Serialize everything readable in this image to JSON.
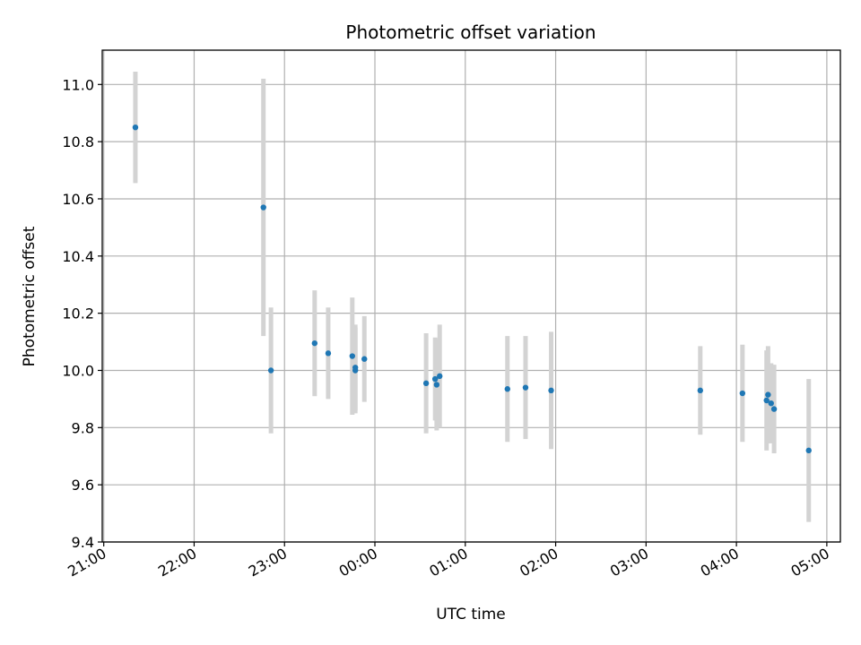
{
  "chart_data": {
    "type": "scatter",
    "title": "Photometric offset variation",
    "xlabel": "UTC time",
    "ylabel": "Photometric offset",
    "x_axis_type": "time",
    "xlim": [
      "20:59",
      "05:09"
    ],
    "ylim": [
      9.4,
      11.12
    ],
    "x_ticks": [
      "21:00",
      "22:00",
      "23:00",
      "00:00",
      "01:00",
      "02:00",
      "03:00",
      "04:00",
      "05:00"
    ],
    "y_ticks": [
      "9.4",
      "9.6",
      "9.8",
      "10.0",
      "10.2",
      "10.4",
      "10.6",
      "10.8",
      "11.0"
    ],
    "grid": true,
    "legend": "none",
    "colors": {
      "point": "#1f77b4",
      "errorbar": "#d3d3d3",
      "grid": "#b0b0b0"
    },
    "points": [
      {
        "x": "21:21",
        "y": 10.85,
        "err": 0.195
      },
      {
        "x": "22:46",
        "y": 10.57,
        "err": 0.45
      },
      {
        "x": "22:51",
        "y": 10.0,
        "err": 0.22
      },
      {
        "x": "23:20",
        "y": 10.095,
        "err": 0.185
      },
      {
        "x": "23:29",
        "y": 10.06,
        "err": 0.16
      },
      {
        "x": "23:45",
        "y": 10.05,
        "err": 0.205
      },
      {
        "x": "23:47",
        "y": 10.01,
        "err": 0.15
      },
      {
        "x": "23:47",
        "y": 10.0,
        "err": 0.15
      },
      {
        "x": "23:53",
        "y": 10.04,
        "err": 0.15
      },
      {
        "x": "00:34",
        "y": 9.955,
        "err": 0.175
      },
      {
        "x": "00:40",
        "y": 9.97,
        "err": 0.145
      },
      {
        "x": "00:41",
        "y": 9.95,
        "err": 0.16
      },
      {
        "x": "00:43",
        "y": 9.98,
        "err": 0.18
      },
      {
        "x": "01:28",
        "y": 9.935,
        "err": 0.185
      },
      {
        "x": "01:40",
        "y": 9.94,
        "err": 0.18
      },
      {
        "x": "01:57",
        "y": 9.93,
        "err": 0.205
      },
      {
        "x": "03:36",
        "y": 9.93,
        "err": 0.155
      },
      {
        "x": "04:04",
        "y": 9.92,
        "err": 0.17
      },
      {
        "x": "04:20",
        "y": 9.895,
        "err": 0.175
      },
      {
        "x": "04:21",
        "y": 9.915,
        "err": 0.17
      },
      {
        "x": "04:23",
        "y": 9.885,
        "err": 0.14
      },
      {
        "x": "04:25",
        "y": 9.865,
        "err": 0.155
      },
      {
        "x": "04:48",
        "y": 9.72,
        "err": 0.25
      }
    ]
  }
}
